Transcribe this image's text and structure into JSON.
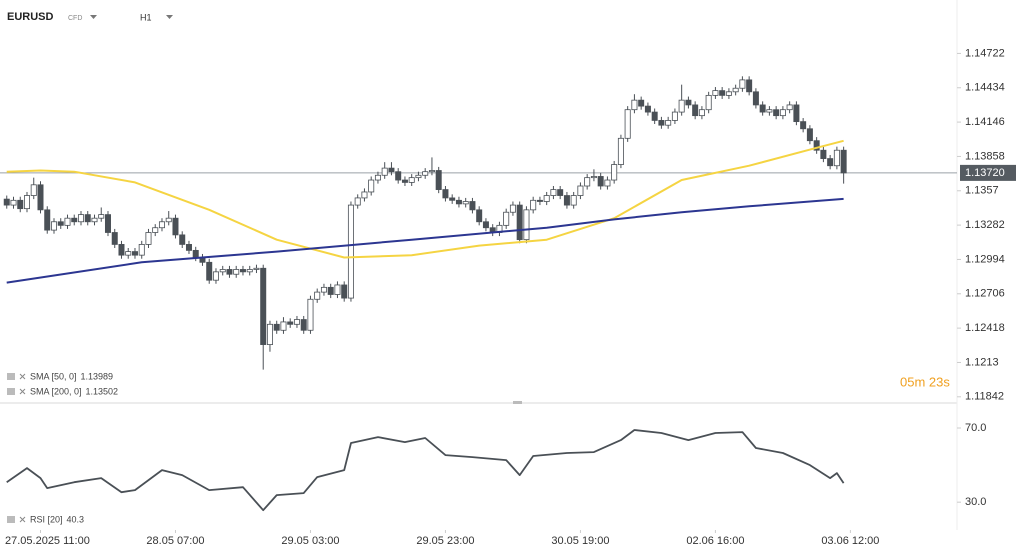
{
  "header": {
    "symbol": "EURUSD",
    "market": "CFD",
    "timeframe": "H1"
  },
  "chart_data": [
    {
      "type": "candlestick",
      "open": [
        1.135,
        1.1345,
        1.1349,
        1.1342,
        1.1353,
        1.1362,
        1.1341,
        1.1324,
        1.1331,
        1.1328,
        1.1334,
        1.1331,
        1.1337,
        1.1331,
        1.1334,
        1.1337,
        1.1322,
        1.1312,
        1.1303,
        1.1306,
        1.1303,
        1.1312,
        1.1322,
        1.1326,
        1.1331,
        1.1334,
        1.132,
        1.1312,
        1.1307,
        1.1301,
        1.1297,
        1.1282,
        1.1289,
        1.1291,
        1.1287,
        1.1291,
        1.1289,
        1.1291,
        1.1292,
        1.1228,
        1.1245,
        1.124,
        1.1247,
        1.1245,
        1.1249,
        1.124,
        1.1266,
        1.1272,
        1.1276,
        1.127,
        1.1278,
        1.1267,
        1.1345,
        1.1351,
        1.1356,
        1.1366,
        1.137,
        1.1376,
        1.1373,
        1.1366,
        1.1364,
        1.1368,
        1.137,
        1.1373,
        1.1374,
        1.1358,
        1.1351,
        1.1349,
        1.1346,
        1.1348,
        1.1341,
        1.1331,
        1.1326,
        1.1322,
        1.1328,
        1.1339,
        1.1345,
        1.1316,
        1.1341,
        1.1349,
        1.1348,
        1.1353,
        1.1358,
        1.1353,
        1.1345,
        1.1353,
        1.1361,
        1.1368,
        1.1369,
        1.1361,
        1.1366,
        1.1379,
        1.1401,
        1.1425,
        1.1433,
        1.1428,
        1.1423,
        1.1416,
        1.1412,
        1.1416,
        1.1423,
        1.1433,
        1.1429,
        1.142,
        1.1425,
        1.1437,
        1.1441,
        1.1437,
        1.144,
        1.1443,
        1.145,
        1.144,
        1.1429,
        1.1423,
        1.1425,
        1.142,
        1.1425,
        1.1429,
        1.1415,
        1.1409,
        1.1399,
        1.1391,
        1.1384,
        1.1378,
        1.1391
      ],
      "high": [
        1.1353,
        1.1352,
        1.1352,
        1.1356,
        1.1368,
        1.1365,
        1.1344,
        1.1334,
        1.1334,
        1.1337,
        1.1337,
        1.134,
        1.134,
        1.1337,
        1.1343,
        1.134,
        1.1325,
        1.1315,
        1.1309,
        1.1309,
        1.1315,
        1.1325,
        1.1329,
        1.1334,
        1.134,
        1.1337,
        1.1323,
        1.1315,
        1.131,
        1.1304,
        1.13,
        1.1292,
        1.1294,
        1.1294,
        1.1294,
        1.1294,
        1.1294,
        1.1295,
        1.1295,
        1.1248,
        1.1248,
        1.1251,
        1.125,
        1.1252,
        1.1252,
        1.1269,
        1.1275,
        1.1279,
        1.1279,
        1.1281,
        1.1281,
        1.1348,
        1.1354,
        1.1359,
        1.1369,
        1.1373,
        1.1381,
        1.1381,
        1.1376,
        1.1369,
        1.1371,
        1.1373,
        1.1376,
        1.1385,
        1.1377,
        1.1361,
        1.1354,
        1.1352,
        1.1351,
        1.1351,
        1.1344,
        1.1334,
        1.1329,
        1.1331,
        1.1342,
        1.1348,
        1.1348,
        1.1344,
        1.1352,
        1.1352,
        1.1356,
        1.1361,
        1.1361,
        1.1356,
        1.1356,
        1.1364,
        1.1371,
        1.1375,
        1.1372,
        1.1369,
        1.1382,
        1.1404,
        1.1428,
        1.1438,
        1.1436,
        1.1431,
        1.1426,
        1.1419,
        1.1419,
        1.1426,
        1.1446,
        1.1436,
        1.1432,
        1.1428,
        1.144,
        1.1444,
        1.1444,
        1.1443,
        1.1446,
        1.1453,
        1.1453,
        1.1443,
        1.1432,
        1.1428,
        1.1428,
        1.1428,
        1.1432,
        1.1432,
        1.1418,
        1.1412,
        1.1402,
        1.1394,
        1.1387,
        1.1394,
        1.1394
      ],
      "low": [
        1.1342,
        1.1342,
        1.1339,
        1.1339,
        1.135,
        1.1338,
        1.1321,
        1.1321,
        1.1325,
        1.1325,
        1.1328,
        1.1328,
        1.1328,
        1.1328,
        1.1331,
        1.1319,
        1.1309,
        1.13,
        1.13,
        1.13,
        1.13,
        1.1309,
        1.1319,
        1.1323,
        1.1328,
        1.1317,
        1.1309,
        1.1304,
        1.1298,
        1.1294,
        1.1279,
        1.1279,
        1.1286,
        1.1284,
        1.1284,
        1.1286,
        1.1286,
        1.1288,
        1.1207,
        1.1222,
        1.1237,
        1.1237,
        1.1242,
        1.1242,
        1.1237,
        1.1237,
        1.1263,
        1.1269,
        1.1267,
        1.1267,
        1.1264,
        1.1264,
        1.1342,
        1.1348,
        1.1353,
        1.1363,
        1.1367,
        1.137,
        1.1363,
        1.1361,
        1.1361,
        1.1365,
        1.1367,
        1.137,
        1.1355,
        1.1348,
        1.1346,
        1.1343,
        1.1343,
        1.1338,
        1.1328,
        1.1323,
        1.1319,
        1.1319,
        1.1325,
        1.1336,
        1.1313,
        1.1313,
        1.1338,
        1.1345,
        1.1345,
        1.135,
        1.135,
        1.1342,
        1.1342,
        1.135,
        1.1358,
        1.1365,
        1.1358,
        1.1358,
        1.1363,
        1.1376,
        1.1398,
        1.1422,
        1.1425,
        1.142,
        1.1413,
        1.1409,
        1.1409,
        1.1413,
        1.142,
        1.1426,
        1.1417,
        1.1417,
        1.1422,
        1.1434,
        1.1434,
        1.1434,
        1.1437,
        1.144,
        1.1437,
        1.1426,
        1.142,
        1.142,
        1.1417,
        1.1417,
        1.1422,
        1.1412,
        1.1406,
        1.1396,
        1.1388,
        1.1381,
        1.1375,
        1.1375,
        1.1363
      ],
      "close": [
        1.1345,
        1.1349,
        1.1342,
        1.1353,
        1.1362,
        1.1341,
        1.1324,
        1.1331,
        1.1328,
        1.1334,
        1.1331,
        1.1337,
        1.1331,
        1.1334,
        1.1337,
        1.1322,
        1.1312,
        1.1303,
        1.1306,
        1.1303,
        1.1312,
        1.1322,
        1.1326,
        1.1331,
        1.1334,
        1.132,
        1.1312,
        1.1307,
        1.1301,
        1.1297,
        1.1282,
        1.1289,
        1.1291,
        1.1287,
        1.1291,
        1.1289,
        1.1291,
        1.1292,
        1.1228,
        1.1245,
        1.124,
        1.1247,
        1.1245,
        1.1249,
        1.124,
        1.1266,
        1.1272,
        1.1276,
        1.127,
        1.1278,
        1.1267,
        1.1345,
        1.1351,
        1.1356,
        1.1366,
        1.137,
        1.1376,
        1.1373,
        1.1366,
        1.1364,
        1.1368,
        1.137,
        1.1373,
        1.1374,
        1.1358,
        1.1351,
        1.1349,
        1.1346,
        1.1348,
        1.1341,
        1.1331,
        1.1326,
        1.1322,
        1.1328,
        1.1339,
        1.1345,
        1.1316,
        1.1341,
        1.1349,
        1.1348,
        1.1353,
        1.1358,
        1.1353,
        1.1345,
        1.1353,
        1.1361,
        1.1368,
        1.1369,
        1.1361,
        1.1366,
        1.1379,
        1.1401,
        1.1425,
        1.1433,
        1.1428,
        1.1423,
        1.1416,
        1.1412,
        1.1416,
        1.1423,
        1.1433,
        1.1429,
        1.142,
        1.1425,
        1.1437,
        1.1441,
        1.1437,
        1.144,
        1.1443,
        1.145,
        1.144,
        1.1429,
        1.1423,
        1.1425,
        1.142,
        1.1425,
        1.1429,
        1.1415,
        1.1409,
        1.1399,
        1.1391,
        1.1384,
        1.1378,
        1.1391,
        1.1372
      ],
      "up_color": "#ffffff",
      "down_color": "#4a5056",
      "xlim": [
        -1,
        140.5
      ],
      "xticks": [
        {
          "value": 5,
          "label": "27.05.2025 11:00"
        },
        {
          "value": 25,
          "label": "28.05 07:00"
        },
        {
          "value": 45,
          "label": "29.05 03:00"
        },
        {
          "value": 65,
          "label": "29.05 23:00"
        },
        {
          "value": 85,
          "label": "30.05 19:00"
        },
        {
          "value": 105,
          "label": "02.06 16:00"
        },
        {
          "value": 125,
          "label": "03.06 12:00"
        }
      ],
      "ylim": [
        1.1179,
        1.1517
      ],
      "yticks": [
        1.14722,
        1.14434,
        1.14146,
        1.13858,
        1.1357,
        1.13282,
        1.12994,
        1.12706,
        1.12418,
        1.1213,
        1.11842
      ],
      "current_price": {
        "value": 1.1372,
        "label": "1.13720"
      },
      "series": [
        {
          "name": "SMA [50, 0]",
          "color": "#f5d442",
          "x": [
            0,
            5,
            10,
            19,
            30,
            40,
            50,
            60,
            70,
            80,
            90,
            100,
            110,
            120,
            124
          ],
          "values": [
            1.1373,
            1.1374,
            1.1373,
            1.1364,
            1.1341,
            1.1316,
            1.1301,
            1.1303,
            1.1311,
            1.1316,
            1.1334,
            1.1366,
            1.1378,
            1.1393,
            1.13989
          ]
        },
        {
          "name": "SMA [200, 0]",
          "color": "#2c3691",
          "x": [
            0,
            20,
            40,
            60,
            80,
            90,
            100,
            110,
            124
          ],
          "values": [
            1.128,
            1.1297,
            1.1306,
            1.1316,
            1.1326,
            1.1333,
            1.1339,
            1.1344,
            1.13502
          ]
        }
      ],
      "countdown": "05m 23s"
    },
    {
      "type": "line",
      "series": [
        {
          "name": "RSI [20]",
          "color": "#4a5056",
          "x": [
            0,
            3,
            5,
            6,
            10,
            14,
            17,
            19,
            23,
            26,
            30,
            35,
            38,
            40,
            44,
            46,
            50,
            51,
            55,
            59,
            62,
            65,
            69,
            74,
            76,
            78,
            83,
            87,
            91,
            93,
            97,
            101,
            105,
            109,
            111,
            115,
            119,
            122,
            123,
            124
          ],
          "values": [
            40.8,
            48.4,
            43.0,
            37.6,
            40.8,
            43.0,
            35.4,
            36.5,
            47.3,
            44.6,
            36.5,
            38.1,
            25.7,
            33.8,
            34.9,
            43.5,
            47.3,
            61.9,
            65.1,
            62.4,
            64.6,
            55.4,
            54.3,
            52.7,
            44.6,
            54.9,
            56.5,
            57.0,
            63.5,
            68.9,
            67.3,
            63.5,
            67.3,
            67.8,
            59.2,
            56.5,
            50.0,
            43.0,
            45.7,
            40.3
          ]
        }
      ],
      "xlim": [
        -1,
        140.5
      ],
      "ylim": [
        15,
        82.4
      ],
      "yticks": [
        {
          "value": 70,
          "label": "70.0"
        },
        {
          "value": 30,
          "label": "30.0"
        }
      ]
    }
  ]
}
